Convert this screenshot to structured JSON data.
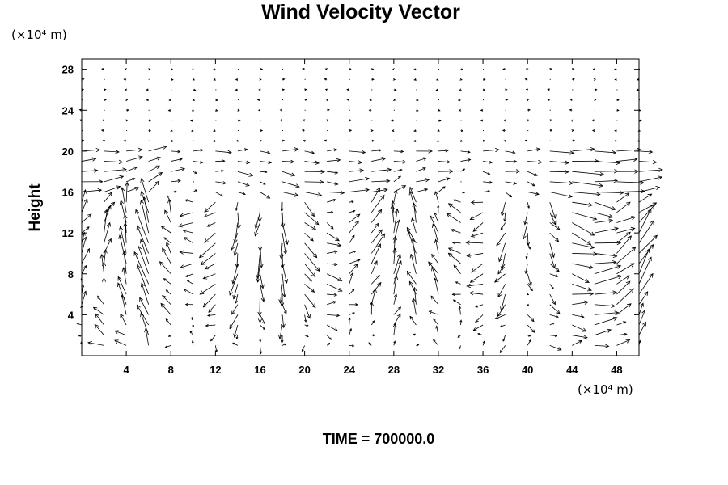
{
  "chart_data": {
    "type": "vector_field",
    "title": "Wind Velocity Vector",
    "ylabel": "Height",
    "x_unit_label": "(×10⁴ m)",
    "y_unit_label": "(×10⁴ m)",
    "xlim": [
      0,
      50
    ],
    "ylim": [
      0,
      29
    ],
    "x_ticks": [
      4,
      8,
      12,
      16,
      20,
      24,
      28,
      32,
      36,
      40,
      44,
      48
    ],
    "y_ticks": [
      4,
      8,
      12,
      16,
      20,
      24,
      28
    ],
    "grid_x": [
      0,
      2,
      4,
      6,
      8,
      10,
      12,
      14,
      16,
      18,
      20,
      22,
      24,
      26,
      28,
      30,
      32,
      34,
      36,
      38,
      40,
      42,
      44,
      46,
      48,
      50
    ],
    "grid_y": [
      1,
      2,
      3,
      4,
      5,
      6,
      7,
      8,
      9,
      10,
      11,
      12,
      13,
      14,
      15,
      16,
      17,
      18,
      19,
      20,
      21,
      22,
      23,
      24,
      25,
      26,
      27,
      28
    ],
    "footer": "TIME = 700000.0"
  }
}
